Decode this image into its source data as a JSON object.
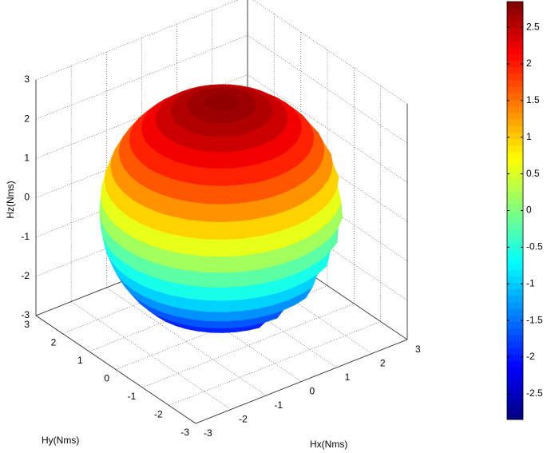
{
  "chart_data": {
    "type": "surface3d",
    "xlabel": "Hx(Nms)",
    "ylabel": "Hy(Nms)",
    "zlabel": "Hz(Nms)",
    "xlim": [
      -3,
      3
    ],
    "ylim": [
      -3,
      3
    ],
    "zlim": [
      -3,
      3
    ],
    "xticks": [
      -3,
      -2,
      -1,
      0,
      1,
      2,
      3
    ],
    "yticks": [
      -3,
      -2,
      -1,
      0,
      1,
      2,
      3
    ],
    "zticks": [
      -3,
      -2,
      -1,
      0,
      1,
      2,
      3
    ],
    "grid": true,
    "colormap": "jet",
    "colorbar": {
      "clim": [
        -2.85,
        2.85
      ],
      "ticks": [
        -2.5,
        -2,
        -1.5,
        -1,
        -0.5,
        0,
        0.5,
        1,
        1.5,
        2,
        2.5
      ]
    }
  }
}
